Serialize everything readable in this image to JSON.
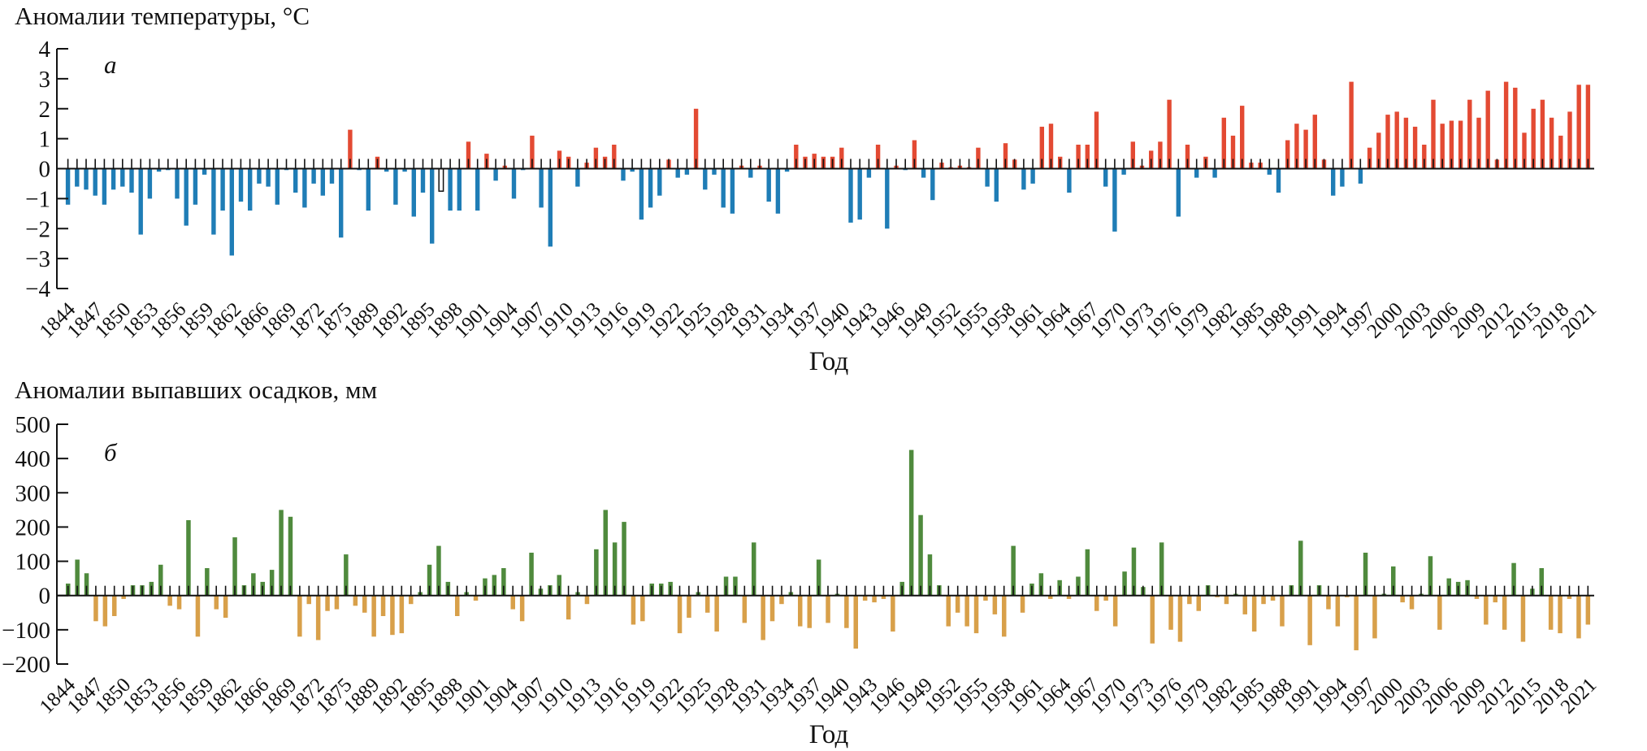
{
  "chart_data": [
    {
      "type": "bar",
      "panel_label": "а",
      "title": "Аномалии температуры, °С",
      "xlabel": "Год",
      "ylabel": "",
      "ylim": [
        -4,
        4
      ],
      "yticks": [
        4,
        3,
        2,
        1,
        0,
        -1,
        -2,
        -3,
        -4
      ],
      "grid": false,
      "colors": {
        "positive": "#e34a33",
        "negative": "#1f7db6",
        "missing": "#ffffff"
      },
      "x_tick_labels": [
        "1844",
        "1847",
        "1850",
        "1853",
        "1856",
        "1859",
        "1862",
        "1866",
        "1869",
        "1872",
        "1875",
        "1889",
        "1892",
        "1895",
        "1898",
        "1901",
        "1904",
        "1907",
        "1910",
        "1913",
        "1916",
        "1919",
        "1922",
        "1925",
        "1928",
        "1931",
        "1934",
        "1937",
        "1940",
        "1943",
        "1946",
        "1949",
        "1952",
        "1955",
        "1958",
        "1961",
        "1964",
        "1967",
        "1970",
        "1973",
        "1976",
        "1979",
        "1982",
        "1985",
        "1988",
        "1991",
        "1994",
        "1997",
        "2000",
        "2003",
        "2006",
        "2009",
        "2012",
        "2015",
        "2018",
        "2021"
      ],
      "values": [
        -1.2,
        -0.6,
        -0.7,
        -0.9,
        -1.2,
        -0.7,
        -0.6,
        -0.8,
        -2.2,
        -1.0,
        -0.1,
        -0.05,
        -1.0,
        -1.9,
        -1.2,
        -0.2,
        -2.2,
        -1.4,
        -2.9,
        -1.1,
        -1.4,
        -0.5,
        -0.6,
        -1.2,
        -0.05,
        -0.8,
        -1.3,
        -0.5,
        -0.9,
        -0.5,
        -2.3,
        1.3,
        -0.05,
        -1.4,
        0.4,
        -0.1,
        -1.2,
        -0.1,
        -1.6,
        -0.8,
        -2.5,
        -0.7,
        -1.4,
        -1.4,
        0.9,
        -1.4,
        0.5,
        -0.4,
        0.1,
        -1.0,
        -0.05,
        1.1,
        -1.3,
        -2.6,
        0.6,
        0.4,
        -0.6,
        0.2,
        0.7,
        0.4,
        0.8,
        -0.4,
        -0.1,
        -1.7,
        -1.3,
        -0.9,
        0.3,
        -0.3,
        -0.2,
        2.0,
        -0.7,
        -0.2,
        -1.3,
        -1.5,
        0.1,
        -0.3,
        0.1,
        -1.1,
        -1.5,
        -0.1,
        0.8,
        0.4,
        0.5,
        0.4,
        0.4,
        0.7,
        -1.8,
        -1.7,
        -0.3,
        0.8,
        -2.0,
        0.1,
        -0.05,
        0.95,
        -0.3,
        -1.05,
        0.2,
        0.05,
        0.1,
        0.05,
        0.7,
        -0.6,
        -1.1,
        0.85,
        0.3,
        -0.7,
        -0.5,
        1.4,
        1.5,
        0.4,
        -0.8,
        0.8,
        0.8,
        1.9,
        -0.6,
        -2.1,
        -0.2,
        0.9,
        0.1,
        0.6,
        0.9,
        2.3,
        -1.6,
        0.8,
        -0.3,
        0.4,
        -0.3,
        1.7,
        1.1,
        2.1,
        0.2,
        0.2,
        -0.2,
        -0.8,
        0.95,
        1.5,
        1.3,
        1.8,
        0.3,
        -0.9,
        -0.6,
        2.9,
        -0.5,
        0.7,
        1.2,
        1.8,
        1.9,
        1.7,
        1.4,
        0.8,
        2.3,
        1.5,
        1.6,
        1.6,
        2.3,
        1.7,
        2.6,
        0.3,
        2.9,
        2.7,
        1.2,
        2.0,
        2.3,
        1.7,
        1.1,
        1.9,
        2.8,
        2.8
      ],
      "missing_index": 41
    },
    {
      "type": "bar",
      "panel_label": "б",
      "title": "Аномалии выпавших осадков, мм",
      "xlabel": "Год",
      "ylabel": "",
      "ylim": [
        -200,
        500
      ],
      "yticks": [
        500,
        400,
        300,
        200,
        100,
        0,
        -100,
        -200
      ],
      "grid": false,
      "colors": {
        "positive": "#4f8a3d",
        "negative": "#d8a04a"
      },
      "x_tick_labels": [
        "1844",
        "1847",
        "1850",
        "1853",
        "1856",
        "1859",
        "1862",
        "1866",
        "1869",
        "1872",
        "1875",
        "1889",
        "1892",
        "1895",
        "1898",
        "1901",
        "1904",
        "1907",
        "1910",
        "1913",
        "1916",
        "1919",
        "1922",
        "1925",
        "1928",
        "1931",
        "1934",
        "1937",
        "1940",
        "1943",
        "1946",
        "1949",
        "1952",
        "1955",
        "1958",
        "1961",
        "1964",
        "1967",
        "1970",
        "1973",
        "1976",
        "1979",
        "1982",
        "1985",
        "1988",
        "1991",
        "1994",
        "1997",
        "2000",
        "2003",
        "2006",
        "2009",
        "2012",
        "2015",
        "2018",
        "2021"
      ],
      "values": [
        35,
        105,
        65,
        -75,
        -90,
        -60,
        -10,
        30,
        30,
        40,
        90,
        -30,
        -40,
        220,
        -120,
        80,
        -40,
        -65,
        170,
        30,
        65,
        40,
        75,
        250,
        230,
        -120,
        -25,
        -130,
        -45,
        -40,
        120,
        -30,
        -50,
        -120,
        -60,
        -115,
        -110,
        -25,
        10,
        90,
        145,
        40,
        -60,
        10,
        -15,
        50,
        60,
        80,
        -40,
        -75,
        125,
        20,
        30,
        60,
        -70,
        10,
        -25,
        135,
        250,
        155,
        215,
        -85,
        -75,
        35,
        35,
        40,
        -110,
        -65,
        10,
        -50,
        -105,
        55,
        55,
        -80,
        155,
        -130,
        -75,
        -25,
        10,
        -90,
        -95,
        105,
        -80,
        5,
        -95,
        -155,
        -15,
        -20,
        -10,
        -105,
        40,
        425,
        235,
        120,
        30,
        -90,
        -50,
        -90,
        -110,
        -15,
        -55,
        -120,
        145,
        -50,
        35,
        65,
        -10,
        45,
        -10,
        55,
        135,
        -45,
        -15,
        -90,
        70,
        140,
        25,
        -140,
        155,
        -100,
        -135,
        -25,
        -45,
        30,
        -5,
        -25,
        5,
        -55,
        -105,
        -25,
        -15,
        -90,
        30,
        160,
        -145,
        30,
        -40,
        -90,
        -5,
        -160,
        125,
        -125,
        5,
        85,
        -20,
        -40,
        5,
        115,
        -100,
        50,
        40,
        45,
        -10,
        -85,
        -20,
        -100,
        95,
        -135,
        20,
        80,
        -100,
        -110,
        -10,
        -125,
        -85
      ]
    }
  ]
}
